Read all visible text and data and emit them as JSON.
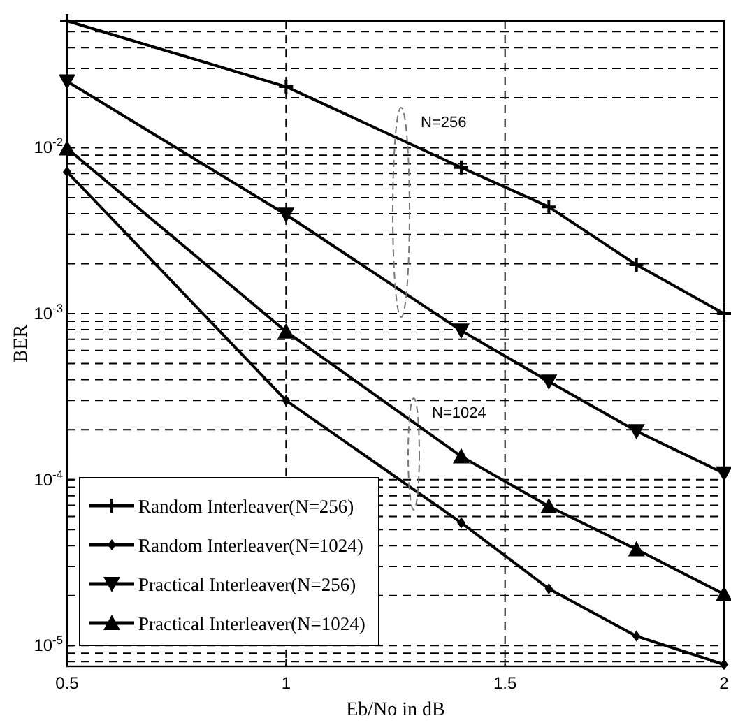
{
  "chart_data": {
    "type": "line",
    "xlabel": "Eb/No in dB",
    "ylabel": "BER",
    "xlim": [
      0.5,
      2
    ],
    "xticks": [
      0.5,
      1,
      1.5,
      2
    ],
    "ylim": [
      7.5e-06,
      0.058
    ],
    "log": true,
    "yticks": [
      {
        "value": 0.01,
        "label": "10$^{-2}$"
      },
      {
        "value": 0.001,
        "label": "10$^{-3}$"
      },
      {
        "value": 0.0001,
        "label": "10$^{-4}$"
      },
      {
        "value": 1e-05,
        "label": "10$^{-5}$"
      }
    ],
    "grid": true,
    "legend": "bottom left",
    "line_style": "solid",
    "x": [
      0.5,
      1,
      1.4,
      1.6,
      1.8,
      2
    ],
    "series": [
      {
        "name": "Random Interleaver(N=256)",
        "color": "#000000",
        "marker": "cross",
        "values": [
          0.058,
          0.0233,
          0.0076,
          0.0044,
          0.00197,
          0.001
        ]
      },
      {
        "name": "Random Interleaver(N=1024)",
        "color": "#000000",
        "marker": "diamond",
        "values": [
          0.00715,
          0.0003,
          5.5e-05,
          2.2e-05,
          1.14e-05,
          7.7e-06
        ]
      },
      {
        "name": "Practical Interleaver(N=256)",
        "color": "#000000",
        "marker": "triangle-down",
        "values": [
          0.0251,
          0.00395,
          0.00079,
          0.00039,
          0.000196,
          0.000109
        ]
      },
      {
        "name": "Practical Interleaver(N=1024)",
        "color": "#000000",
        "marker": "triangle",
        "values": [
          0.0099,
          0.00078,
          0.000138,
          6.9e-05,
          3.8e-05,
          2.04e-05
        ]
      }
    ],
    "annotations": [
      "N=256",
      "N=1024"
    ]
  }
}
